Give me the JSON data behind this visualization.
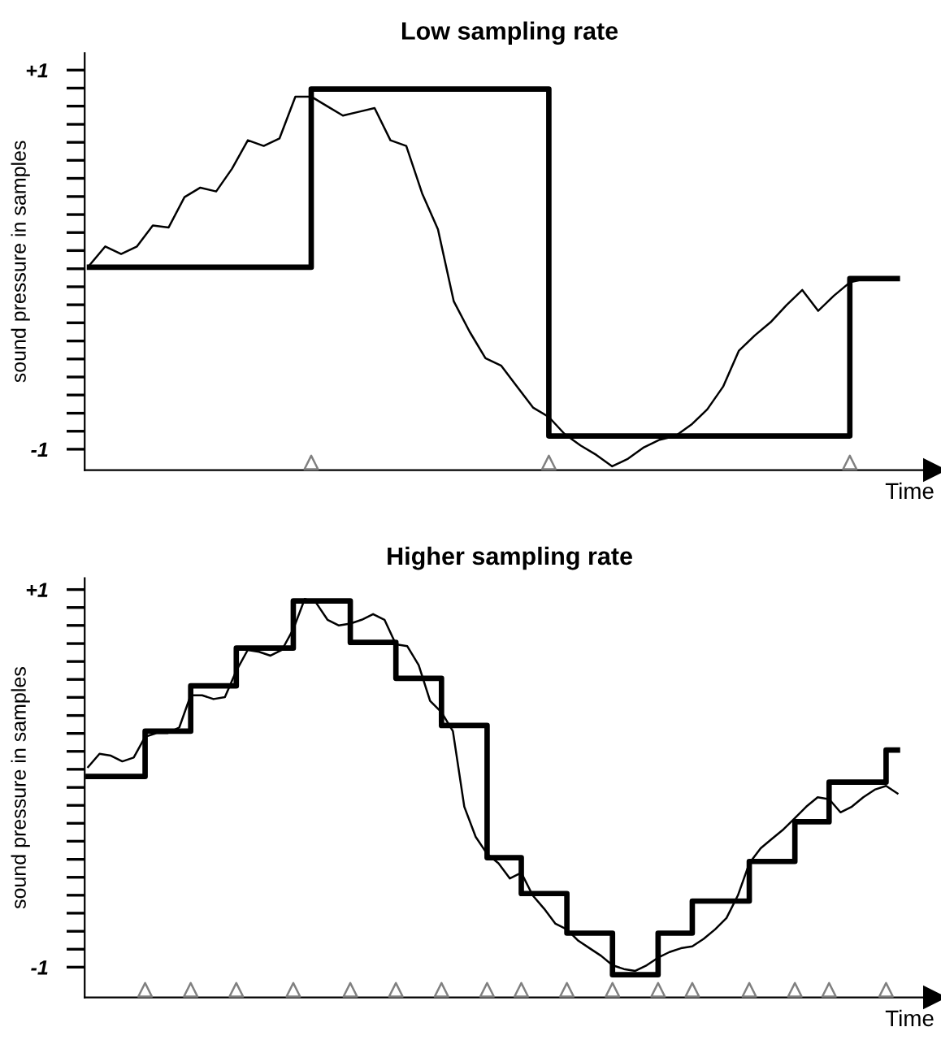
{
  "chart_data": [
    {
      "type": "line",
      "title": "Low sampling rate",
      "xlabel": "Time",
      "ylabel": "sound pressure in samples",
      "categories": [
        null,
        null,
        null,
        null,
        null,
        null,
        null,
        null,
        null,
        null,
        null,
        null,
        null,
        null,
        null,
        null,
        null,
        null,
        null,
        null,
        null,
        null,
        null,
        null,
        null,
        null,
        null,
        null,
        null,
        null,
        null,
        null,
        null,
        null,
        null,
        null,
        null,
        null,
        null,
        null,
        null,
        null,
        null,
        null,
        null,
        null,
        null,
        null,
        null,
        null,
        null,
        null
      ],
      "series": [
        {
          "type": "line",
          "color": "#000000",
          "values": [
            -0.03,
            0.07,
            0.03,
            0.07,
            0.18,
            0.17,
            0.33,
            0.38,
            0.36,
            0.48,
            0.63,
            0.6,
            0.64,
            0.86,
            0.86,
            0.81,
            0.76,
            0.78,
            0.8,
            0.63,
            0.6,
            0.35,
            0.16,
            -0.22,
            -0.38,
            -0.52,
            -0.56,
            -0.67,
            -0.78,
            -0.83,
            -0.92,
            -0.98,
            -1.03,
            -1.09,
            -1.05,
            -0.99,
            -0.95,
            -0.93,
            -0.87,
            -0.79,
            -0.67,
            -0.48,
            -0.4,
            -0.33,
            -0.24,
            -0.16,
            -0.27,
            -0.19,
            -0.12,
            -0.1,
            null,
            null
          ]
        },
        {
          "type": "step",
          "color": "#000000",
          "values": [
            -0.04,
            -0.04,
            -0.04,
            -0.04,
            -0.04,
            -0.04,
            -0.04,
            -0.04,
            -0.04,
            -0.04,
            -0.04,
            -0.04,
            -0.04,
            -0.04,
            0.9,
            0.9,
            0.9,
            0.9,
            0.9,
            0.9,
            0.9,
            0.9,
            0.9,
            0.9,
            0.9,
            0.9,
            0.9,
            0.9,
            0.9,
            -0.93,
            -0.93,
            -0.93,
            -0.93,
            -0.93,
            -0.93,
            -0.93,
            -0.93,
            -0.93,
            -0.93,
            -0.93,
            -0.93,
            -0.93,
            -0.93,
            -0.93,
            -0.93,
            -0.93,
            -0.93,
            -0.93,
            -0.1,
            -0.1,
            -0.1,
            -0.1
          ]
        },
        {
          "type": "scatter",
          "marker": "triangle",
          "color": "#808080",
          "values": [
            null,
            null,
            null,
            null,
            null,
            null,
            null,
            null,
            null,
            null,
            null,
            null,
            null,
            null,
            -1.07,
            null,
            null,
            null,
            null,
            null,
            null,
            null,
            null,
            null,
            null,
            null,
            null,
            null,
            null,
            -1.07,
            null,
            null,
            null,
            null,
            null,
            null,
            null,
            null,
            null,
            null,
            null,
            null,
            null,
            null,
            null,
            null,
            null,
            null,
            -1.07,
            null,
            null,
            null
          ]
        }
      ],
      "ylim": [
        -1.11,
        1.09
      ],
      "yticks": [
        {
          "value": 1,
          "label": "+1"
        },
        {
          "value": 0.905,
          "label": null
        },
        {
          "value": 0.81,
          "label": null
        },
        {
          "value": 0.714,
          "label": null
        },
        {
          "value": 0.619,
          "label": null
        },
        {
          "value": 0.524,
          "label": null
        },
        {
          "value": 0.429,
          "label": null
        },
        {
          "value": 0.333,
          "label": null
        },
        {
          "value": 0.238,
          "label": null
        },
        {
          "value": 0.143,
          "label": null
        },
        {
          "value": 0.048,
          "label": null
        },
        {
          "value": -0.048,
          "label": null
        },
        {
          "value": -0.143,
          "label": null
        },
        {
          "value": -0.238,
          "label": null
        },
        {
          "value": -0.333,
          "label": null
        },
        {
          "value": -0.429,
          "label": null
        },
        {
          "value": -0.524,
          "label": null
        },
        {
          "value": -0.619,
          "label": null
        },
        {
          "value": -0.714,
          "label": null
        },
        {
          "value": -0.81,
          "label": null
        },
        {
          "value": -0.905,
          "label": null
        },
        {
          "value": -1,
          "label": "-1"
        }
      ],
      "grid": false,
      "legend": false
    },
    {
      "type": "line",
      "title": "Higher sampling rate",
      "xlabel": "Time",
      "ylabel": "sound pressure in samples",
      "categories": [
        null,
        null,
        null,
        null,
        null,
        null,
        null,
        null,
        null,
        null,
        null,
        null,
        null,
        null,
        null,
        null,
        null,
        null,
        null,
        null,
        null,
        null,
        null,
        null,
        null,
        null,
        null,
        null,
        null,
        null,
        null,
        null,
        null,
        null,
        null,
        null,
        null,
        null,
        null,
        null,
        null,
        null,
        null,
        null,
        null,
        null,
        null,
        null,
        null,
        null,
        null,
        null,
        null,
        null,
        null,
        null,
        null,
        null,
        null,
        null,
        null,
        null,
        null,
        null,
        null,
        null,
        null,
        null,
        null,
        null,
        null,
        null
      ],
      "series": [
        {
          "type": "line",
          "color": "#000000",
          "values": [
            0.06,
            0.13,
            0.12,
            0.09,
            0.11,
            0.22,
            0.24,
            0.24,
            0.27,
            0.44,
            0.44,
            0.42,
            0.43,
            0.57,
            0.68,
            0.67,
            0.65,
            0.68,
            0.79,
            0.95,
            0.93,
            0.84,
            0.81,
            0.82,
            0.84,
            0.87,
            0.84,
            0.71,
            0.7,
            0.6,
            0.41,
            0.35,
            0.25,
            -0.15,
            -0.31,
            -0.4,
            -0.45,
            -0.53,
            -0.5,
            -0.62,
            -0.69,
            -0.77,
            -0.8,
            -0.86,
            -0.9,
            -0.94,
            -0.99,
            -1.01,
            -1.02,
            -0.99,
            -0.95,
            -0.92,
            -0.9,
            -0.89,
            -0.85,
            -0.8,
            -0.74,
            -0.62,
            -0.45,
            -0.37,
            -0.32,
            -0.27,
            -0.21,
            -0.15,
            -0.1,
            -0.11,
            -0.18,
            -0.15,
            -0.1,
            -0.06,
            -0.04,
            -0.08
          ]
        },
        {
          "type": "step",
          "color": "#000000",
          "values": [
            0.01,
            0.01,
            0.01,
            0.01,
            0.01,
            0.25,
            0.25,
            0.25,
            0.25,
            0.49,
            0.49,
            0.49,
            0.49,
            0.69,
            0.69,
            0.69,
            0.69,
            0.69,
            0.94,
            0.94,
            0.94,
            0.94,
            0.94,
            0.72,
            0.72,
            0.72,
            0.72,
            0.53,
            0.53,
            0.53,
            0.53,
            0.28,
            0.28,
            0.28,
            0.28,
            -0.42,
            -0.42,
            -0.42,
            -0.61,
            -0.61,
            -0.61,
            -0.61,
            -0.82,
            -0.82,
            -0.82,
            -0.82,
            -1.04,
            -1.04,
            -1.04,
            -1.04,
            -0.82,
            -0.82,
            -0.82,
            -0.65,
            -0.65,
            -0.65,
            -0.65,
            -0.65,
            -0.44,
            -0.44,
            -0.44,
            -0.44,
            -0.23,
            -0.23,
            -0.23,
            -0.02,
            -0.02,
            -0.02,
            -0.02,
            -0.02,
            0.15,
            0.15
          ]
        },
        {
          "type": "scatter",
          "marker": "triangle",
          "color": "#808080",
          "values": [
            null,
            null,
            null,
            null,
            null,
            -1.12,
            null,
            null,
            null,
            -1.12,
            null,
            null,
            null,
            -1.12,
            null,
            null,
            null,
            null,
            -1.12,
            null,
            null,
            null,
            null,
            -1.12,
            null,
            null,
            null,
            -1.12,
            null,
            null,
            null,
            -1.12,
            null,
            null,
            null,
            -1.12,
            null,
            null,
            -1.12,
            null,
            null,
            null,
            -1.12,
            null,
            null,
            null,
            -1.12,
            null,
            null,
            null,
            -1.12,
            null,
            null,
            -1.12,
            null,
            null,
            null,
            null,
            -1.12,
            null,
            null,
            null,
            -1.12,
            null,
            null,
            -1.12,
            null,
            null,
            null,
            null,
            -1.12,
            null
          ]
        }
      ],
      "ylim": [
        -1.16,
        1.06
      ],
      "yticks": [
        {
          "value": 1,
          "label": "+1"
        },
        {
          "value": 0.905,
          "label": null
        },
        {
          "value": 0.81,
          "label": null
        },
        {
          "value": 0.714,
          "label": null
        },
        {
          "value": 0.619,
          "label": null
        },
        {
          "value": 0.524,
          "label": null
        },
        {
          "value": 0.429,
          "label": null
        },
        {
          "value": 0.333,
          "label": null
        },
        {
          "value": 0.238,
          "label": null
        },
        {
          "value": 0.143,
          "label": null
        },
        {
          "value": 0.048,
          "label": null
        },
        {
          "value": -0.048,
          "label": null
        },
        {
          "value": -0.143,
          "label": null
        },
        {
          "value": -0.238,
          "label": null
        },
        {
          "value": -0.333,
          "label": null
        },
        {
          "value": -0.429,
          "label": null
        },
        {
          "value": -0.524,
          "label": null
        },
        {
          "value": -0.619,
          "label": null
        },
        {
          "value": -0.714,
          "label": null
        },
        {
          "value": -0.81,
          "label": null
        },
        {
          "value": -0.905,
          "label": null
        },
        {
          "value": -1,
          "label": "-1"
        }
      ],
      "grid": false,
      "legend": false
    }
  ]
}
